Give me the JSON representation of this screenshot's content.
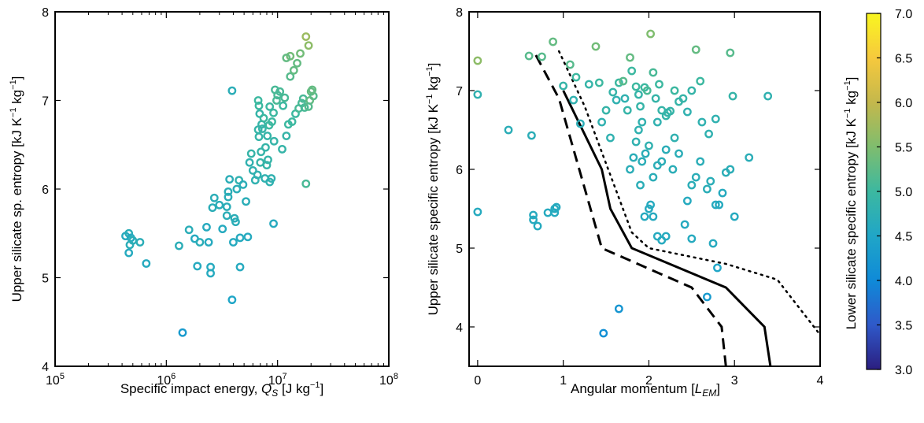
{
  "chart_data": [
    {
      "type": "scatter",
      "xlabel": "Specific impact energy, $Q_S$ [J kg$^{-1}$]",
      "xlabel_parts": [
        "Specific impact energy, ",
        "Q",
        "S",
        " [J kg",
        "−1",
        "]"
      ],
      "ylabel": "Upper silicate sp. entropy [kJ K⁻¹ kg⁻¹]",
      "ylabel_parts": [
        "Upper silicate sp. entropy [kJ K",
        "−1",
        " kg",
        "−1",
        "]"
      ],
      "x_scale": "log",
      "xlim": [
        100000,
        100000000
      ],
      "ylim": [
        4,
        8
      ],
      "x_ticks": [
        {
          "base": "10",
          "exp": "5"
        },
        {
          "base": "10",
          "exp": "6"
        },
        {
          "base": "10",
          "exp": "7"
        },
        {
          "base": "10",
          "exp": "8"
        }
      ],
      "y_ticks": [
        "4",
        "5",
        "6",
        "7",
        "8"
      ],
      "grid": false,
      "points": [
        [
          430000.0,
          5.47,
          4.6
        ],
        [
          460000.0,
          5.5,
          4.7
        ],
        [
          480000.0,
          5.45,
          4.6
        ],
        [
          470000.0,
          5.37,
          4.7
        ],
        [
          460000.0,
          5.28,
          4.6
        ],
        [
          500000.0,
          5.42,
          4.7
        ],
        [
          580000.0,
          5.4,
          4.7
        ],
        [
          660000.0,
          5.16,
          4.6
        ],
        [
          1300000.0,
          5.36,
          4.7
        ],
        [
          1400000.0,
          4.38,
          4.3
        ],
        [
          1600000.0,
          5.54,
          4.7
        ],
        [
          1800000.0,
          5.44,
          4.6
        ],
        [
          1900000.0,
          5.13,
          4.6
        ],
        [
          2000000.0,
          5.4,
          4.7
        ],
        [
          2300000.0,
          5.57,
          4.6
        ],
        [
          2400000.0,
          5.4,
          4.6
        ],
        [
          2500000.0,
          5.12,
          4.6
        ],
        [
          2500000.0,
          5.05,
          4.6
        ],
        [
          2600000.0,
          5.79,
          4.7
        ],
        [
          2700000.0,
          5.9,
          4.7
        ],
        [
          3000000.0,
          5.82,
          4.7
        ],
        [
          3200000.0,
          5.55,
          4.6
        ],
        [
          3500000.0,
          5.8,
          4.7
        ],
        [
          3500000.0,
          5.7,
          4.7
        ],
        [
          3600000.0,
          5.91,
          4.7
        ],
        [
          3600000.0,
          5.97,
          4.7
        ],
        [
          3700000.0,
          6.11,
          4.7
        ],
        [
          3900000.0,
          4.75,
          4.5
        ],
        [
          3900000.0,
          7.11,
          4.7
        ],
        [
          4000000.0,
          5.4,
          4.6
        ],
        [
          4100000.0,
          5.67,
          4.7
        ],
        [
          4200000.0,
          5.63,
          4.7
        ],
        [
          4300000.0,
          6.0,
          4.7
        ],
        [
          4500000.0,
          6.1,
          4.8
        ],
        [
          4600000.0,
          5.45,
          4.6
        ],
        [
          4600000.0,
          5.12,
          4.6
        ],
        [
          4900000.0,
          6.05,
          4.7
        ],
        [
          5200000.0,
          5.86,
          4.7
        ],
        [
          5400000.0,
          5.46,
          4.6
        ],
        [
          5600000.0,
          6.3,
          4.8
        ],
        [
          5800000.0,
          6.4,
          4.9
        ],
        [
          6000000.0,
          6.21,
          4.8
        ],
        [
          6300000.0,
          6.1,
          4.8
        ],
        [
          6600000.0,
          6.16,
          4.8
        ],
        [
          6700000.0,
          6.67,
          4.9
        ],
        [
          6800000.0,
          6.59,
          4.9
        ],
        [
          6900000.0,
          6.85,
          4.9
        ],
        [
          7000000.0,
          6.3,
          4.9
        ],
        [
          7100000.0,
          6.42,
          4.9
        ],
        [
          6700000.0,
          7.0,
          5.0
        ],
        [
          6800000.0,
          6.94,
          5.0
        ],
        [
          7200000.0,
          6.73,
          4.9
        ],
        [
          7300000.0,
          6.68,
          4.9
        ],
        [
          7500000.0,
          6.8,
          5.0
        ],
        [
          7700000.0,
          6.12,
          4.8
        ],
        [
          7800000.0,
          6.47,
          4.9
        ],
        [
          8000000.0,
          6.27,
          4.9
        ],
        [
          8100000.0,
          6.6,
          4.9
        ],
        [
          8200000.0,
          6.33,
          4.9
        ],
        [
          8400000.0,
          6.72,
          5.0
        ],
        [
          8500000.0,
          6.08,
          4.8
        ],
        [
          8500000.0,
          6.93,
          5.0
        ],
        [
          8800000.0,
          6.12,
          4.8
        ],
        [
          8900000.0,
          6.76,
          5.0
        ],
        [
          9200000.0,
          6.86,
          5.0
        ],
        [
          9300000.0,
          6.54,
          4.9
        ],
        [
          9500000.0,
          7.12,
          5.1
        ],
        [
          9200000.0,
          5.61,
          4.6
        ],
        [
          9800000.0,
          7.0,
          5.1
        ],
        [
          10000000.0,
          7.06,
          5.1
        ],
        [
          10500000.0,
          7.1,
          5.1
        ],
        [
          11000000.0,
          6.45,
          4.9
        ],
        [
          11200000.0,
          6.94,
          5.0
        ],
        [
          11600000.0,
          7.03,
          5.1
        ],
        [
          12000000.0,
          6.6,
          4.9
        ],
        [
          12500000.0,
          6.73,
          5.0
        ],
        [
          13000000.0,
          7.27,
          5.2
        ],
        [
          13500000.0,
          6.76,
          5.0
        ],
        [
          14000000.0,
          7.34,
          5.3
        ],
        [
          14500000.0,
          6.85,
          5.0
        ],
        [
          15000000.0,
          7.42,
          5.3
        ],
        [
          15500000.0,
          6.91,
          5.1
        ],
        [
          16000000.0,
          7.53,
          5.4
        ],
        [
          16500000.0,
          6.97,
          5.1
        ],
        [
          17000000.0,
          7.02,
          5.1
        ],
        [
          17500000.0,
          6.92,
          5.1
        ],
        [
          18000000.0,
          7.72,
          5.7
        ],
        [
          19000000.0,
          7.62,
          5.6
        ],
        [
          20000000.0,
          7.1,
          5.3
        ],
        [
          21000000.0,
          7.05,
          5.2
        ],
        [
          20500000.0,
          7.12,
          5.3
        ],
        [
          18000000.0,
          6.06,
          5.1
        ],
        [
          19500000.0,
          7.0,
          5.3
        ],
        [
          19000000.0,
          6.93,
          5.2
        ],
        [
          13000000.0,
          7.5,
          5.4
        ],
        [
          12000000.0,
          7.48,
          5.3
        ]
      ]
    },
    {
      "type": "scatter",
      "xlabel": "Angular momentum [$L_{EM}$]",
      "xlabel_parts": [
        "Angular momentum [",
        "L",
        "EM",
        "]"
      ],
      "ylabel": "Upper silicate specific entropy [kJ K⁻¹ kg⁻¹]",
      "ylabel_parts": [
        "Upper silicate specific entropy [kJ K",
        "−1",
        " kg",
        "−1",
        "]"
      ],
      "xlim": [
        -0.1,
        4
      ],
      "ylim": [
        3.5,
        8
      ],
      "x_ticks": [
        "0",
        "1",
        "2",
        "3",
        "4"
      ],
      "y_ticks": [
        "4",
        "5",
        "6",
        "7",
        "8"
      ],
      "grid": false,
      "lines": [
        {
          "style": "solid",
          "points": [
            [
              1.0,
              7.0
            ],
            [
              1.45,
              6.0
            ],
            [
              1.55,
              5.5
            ],
            [
              1.8,
              5.0
            ],
            [
              2.9,
              4.5
            ],
            [
              3.35,
              4.0
            ],
            [
              3.42,
              3.5
            ]
          ]
        },
        {
          "style": "dashed",
          "points": [
            [
              0.68,
              7.45
            ],
            [
              0.95,
              6.9
            ],
            [
              1.45,
              5.0
            ],
            [
              2.5,
              4.5
            ],
            [
              2.85,
              4.0
            ],
            [
              2.9,
              3.5
            ]
          ]
        },
        {
          "style": "dotted",
          "points": [
            [
              0.95,
              7.5
            ],
            [
              1.25,
              6.8
            ],
            [
              1.8,
              5.2
            ],
            [
              2.0,
              5.0
            ],
            [
              2.9,
              4.8
            ],
            [
              3.5,
              4.6
            ],
            [
              4.0,
              3.9
            ]
          ]
        }
      ],
      "points": [
        [
          0.0,
          7.38,
          5.6
        ],
        [
          0.0,
          6.95,
          4.8
        ],
        [
          0.0,
          5.46,
          4.6
        ],
        [
          0.36,
          6.5,
          4.7
        ],
        [
          0.63,
          6.43,
          4.7
        ],
        [
          0.6,
          7.44,
          5.2
        ],
        [
          0.75,
          7.43,
          5.2
        ],
        [
          0.88,
          7.62,
          5.3
        ],
        [
          0.92,
          5.52,
          4.6
        ],
        [
          0.9,
          5.45,
          4.6
        ],
        [
          0.65,
          5.42,
          4.6
        ],
        [
          0.65,
          5.36,
          4.6
        ],
        [
          0.7,
          5.28,
          4.6
        ],
        [
          0.82,
          5.45,
          4.6
        ],
        [
          0.9,
          5.5,
          4.6
        ],
        [
          1.08,
          7.33,
          5.2
        ],
        [
          1.15,
          7.17,
          5.0
        ],
        [
          1.0,
          7.06,
          4.9
        ],
        [
          1.12,
          6.88,
          4.8
        ],
        [
          1.2,
          6.58,
          4.7
        ],
        [
          1.3,
          7.08,
          4.9
        ],
        [
          1.38,
          7.56,
          5.4
        ],
        [
          1.42,
          7.1,
          5.0
        ],
        [
          1.45,
          6.6,
          4.8
        ],
        [
          1.5,
          6.75,
          4.9
        ],
        [
          1.55,
          6.4,
          4.8
        ],
        [
          1.58,
          6.98,
          4.9
        ],
        [
          1.62,
          6.88,
          4.8
        ],
        [
          1.65,
          7.1,
          5.0
        ],
        [
          1.7,
          7.12,
          5.2
        ],
        [
          1.72,
          6.9,
          4.8
        ],
        [
          1.75,
          6.75,
          4.9
        ],
        [
          1.78,
          7.42,
          5.3
        ],
        [
          1.8,
          7.25,
          5.0
        ],
        [
          1.85,
          7.05,
          5.0
        ],
        [
          1.88,
          6.95,
          4.9
        ],
        [
          1.9,
          6.8,
          4.9
        ],
        [
          1.92,
          6.6,
          4.8
        ],
        [
          1.95,
          7.04,
          5.0
        ],
        [
          1.98,
          7.0,
          5.1
        ],
        [
          2.02,
          7.72,
          5.5
        ],
        [
          2.05,
          7.23,
          5.1
        ],
        [
          2.08,
          6.9,
          4.9
        ],
        [
          2.1,
          6.6,
          4.8
        ],
        [
          2.12,
          7.08,
          5.0
        ],
        [
          2.15,
          6.75,
          4.9
        ],
        [
          2.2,
          6.68,
          4.9
        ],
        [
          2.22,
          6.72,
          4.9
        ],
        [
          2.25,
          6.74,
          4.9
        ],
        [
          2.3,
          7.0,
          5.0
        ],
        [
          2.35,
          6.86,
          4.9
        ],
        [
          2.4,
          6.9,
          4.9
        ],
        [
          2.45,
          6.73,
          4.8
        ],
        [
          2.5,
          7.0,
          4.9
        ],
        [
          2.55,
          7.52,
          5.3
        ],
        [
          2.6,
          7.12,
          5.0
        ],
        [
          2.62,
          6.6,
          4.8
        ],
        [
          2.7,
          6.45,
          4.8
        ],
        [
          2.78,
          6.64,
          4.8
        ],
        [
          2.95,
          7.48,
          5.2
        ],
        [
          2.98,
          6.93,
          4.9
        ],
        [
          3.39,
          6.93,
          4.8
        ],
        [
          3.17,
          6.15,
          4.7
        ],
        [
          2.95,
          6.0,
          4.7
        ],
        [
          2.9,
          5.96,
          4.7
        ],
        [
          2.86,
          5.7,
          4.6
        ],
        [
          2.82,
          5.55,
          4.6
        ],
        [
          2.78,
          5.55,
          4.6
        ],
        [
          2.72,
          5.85,
          4.7
        ],
        [
          2.68,
          5.75,
          4.7
        ],
        [
          2.6,
          6.1,
          4.7
        ],
        [
          2.55,
          5.9,
          4.7
        ],
        [
          2.5,
          5.8,
          4.7
        ],
        [
          2.45,
          5.6,
          4.6
        ],
        [
          2.42,
          5.3,
          4.6
        ],
        [
          2.35,
          6.2,
          4.7
        ],
        [
          2.3,
          6.4,
          4.8
        ],
        [
          2.28,
          6.0,
          4.7
        ],
        [
          2.2,
          6.25,
          4.7
        ],
        [
          2.15,
          6.1,
          4.7
        ],
        [
          2.1,
          6.05,
          4.7
        ],
        [
          2.05,
          5.9,
          4.7
        ],
        [
          2.0,
          6.3,
          4.8
        ],
        [
          1.96,
          6.2,
          4.7
        ],
        [
          1.92,
          6.1,
          4.7
        ],
        [
          1.9,
          5.8,
          4.7
        ],
        [
          1.88,
          6.5,
          4.8
        ],
        [
          1.85,
          6.35,
          4.8
        ],
        [
          1.82,
          6.15,
          4.7
        ],
        [
          1.78,
          6.0,
          4.7
        ],
        [
          2.02,
          5.55,
          4.6
        ],
        [
          2.0,
          5.5,
          4.6
        ],
        [
          2.05,
          5.4,
          4.6
        ],
        [
          1.95,
          5.4,
          4.6
        ],
        [
          2.1,
          5.15,
          4.6
        ],
        [
          2.15,
          5.1,
          4.6
        ],
        [
          2.5,
          5.12,
          4.6
        ],
        [
          2.75,
          5.06,
          4.6
        ],
        [
          2.8,
          4.75,
          4.5
        ],
        [
          2.68,
          4.38,
          4.3
        ],
        [
          1.65,
          4.23,
          4.2
        ],
        [
          1.47,
          3.92,
          4.1
        ],
        [
          3.0,
          5.4,
          4.6
        ],
        [
          2.2,
          5.15,
          4.6
        ]
      ]
    }
  ],
  "colorbar": {
    "label": "Lower silicate specific entropy [kJ K⁻¹ kg⁻¹]",
    "label_parts": [
      "Lower silicate specific entropy [kJ K",
      "−1",
      " kg",
      "−1",
      "]"
    ],
    "range": [
      3.0,
      7.0
    ],
    "ticks": [
      "3.0",
      "3.5",
      "4.0",
      "4.5",
      "5.0",
      "5.5",
      "6.0",
      "6.5",
      "7.0"
    ],
    "colormap": [
      "#2b1e80",
      "#2f59c9",
      "#0f8ad8",
      "#20a6c7",
      "#3cb8a0",
      "#7fbd6e",
      "#c4b84c",
      "#f6c93d",
      "#f9f620"
    ]
  }
}
